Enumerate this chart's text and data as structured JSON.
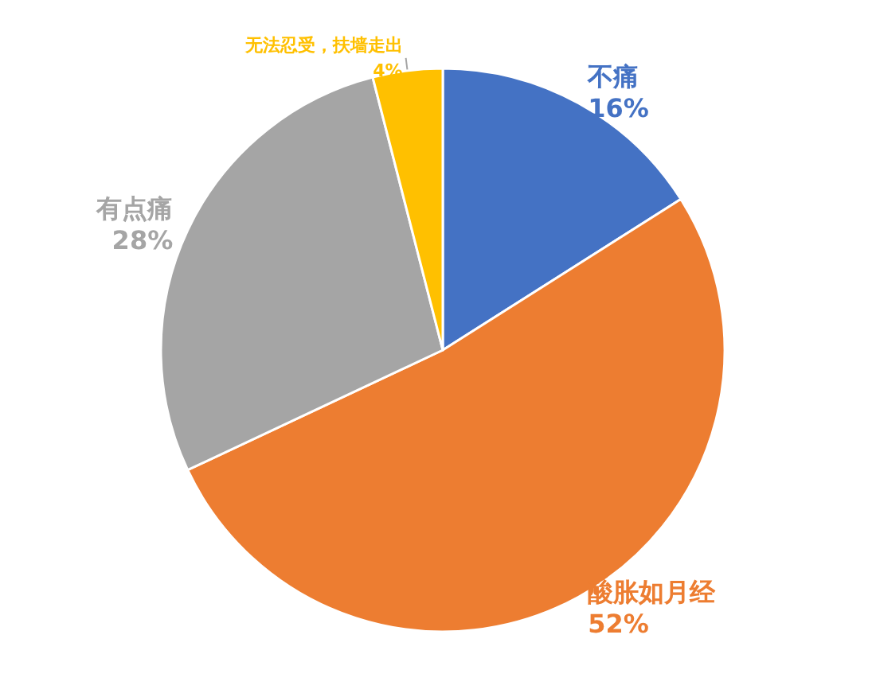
{
  "chart_data": {
    "type": "pie",
    "categories": [
      "不痛",
      "酸胀如月经",
      "有点痛",
      "无法忍受，扶墙走出"
    ],
    "values": [
      16,
      52,
      28,
      4
    ],
    "colors": [
      "#4472c4",
      "#ed7d31",
      "#a5a5a5",
      "#ffc000"
    ],
    "value_labels": [
      "16%",
      "52%",
      "28%",
      "4%"
    ],
    "legend": false
  }
}
